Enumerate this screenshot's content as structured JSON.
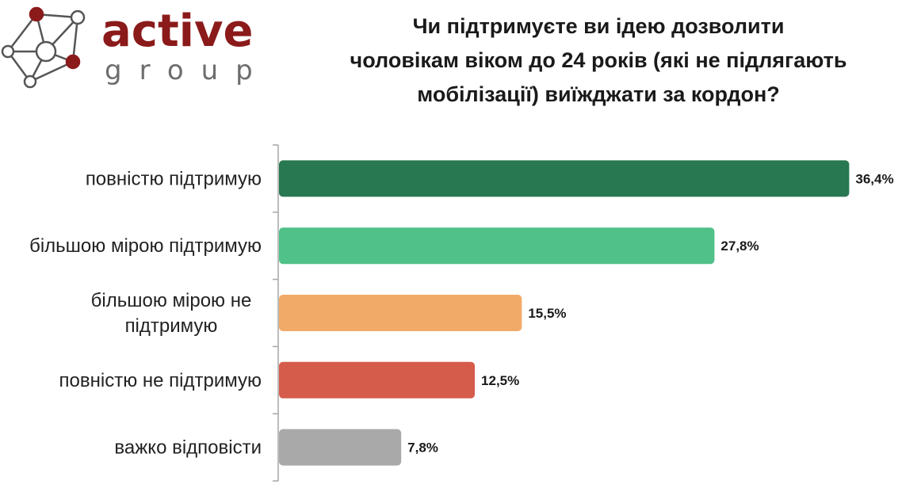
{
  "logo": {
    "word": "active",
    "sub": "group"
  },
  "chart_data": {
    "type": "bar",
    "orientation": "horizontal",
    "title": "Чи підтримуєте ви ідею дозволити\nчоловікам віком до 24 років (які не підлягають\nмобілізації) виїжджати за кордон?",
    "categories": [
      "повністю підтримую",
      "більшою мірою підтримую",
      "більшою мірою не підтримую",
      "повністю не підтримую",
      "важко відповісти"
    ],
    "category_lines": [
      [
        "повністю підтримую"
      ],
      [
        "більшою мірою підтримую"
      ],
      [
        "більшою мірою не",
        "підтримую"
      ],
      [
        "повністю не підтримую"
      ],
      [
        "важко відповісти"
      ]
    ],
    "values": [
      36.4,
      27.8,
      15.5,
      12.5,
      7.8
    ],
    "value_labels": [
      "36,4%",
      "27,8%",
      "15,5%",
      "12,5%",
      "7,8%"
    ],
    "colors": [
      "#287851",
      "#50c189",
      "#f2aa68",
      "#d55b4b",
      "#a9a9a9"
    ],
    "axis_color": "#a6a6a6",
    "xlim": [
      0,
      38
    ],
    "grid": false,
    "legend": "none"
  }
}
